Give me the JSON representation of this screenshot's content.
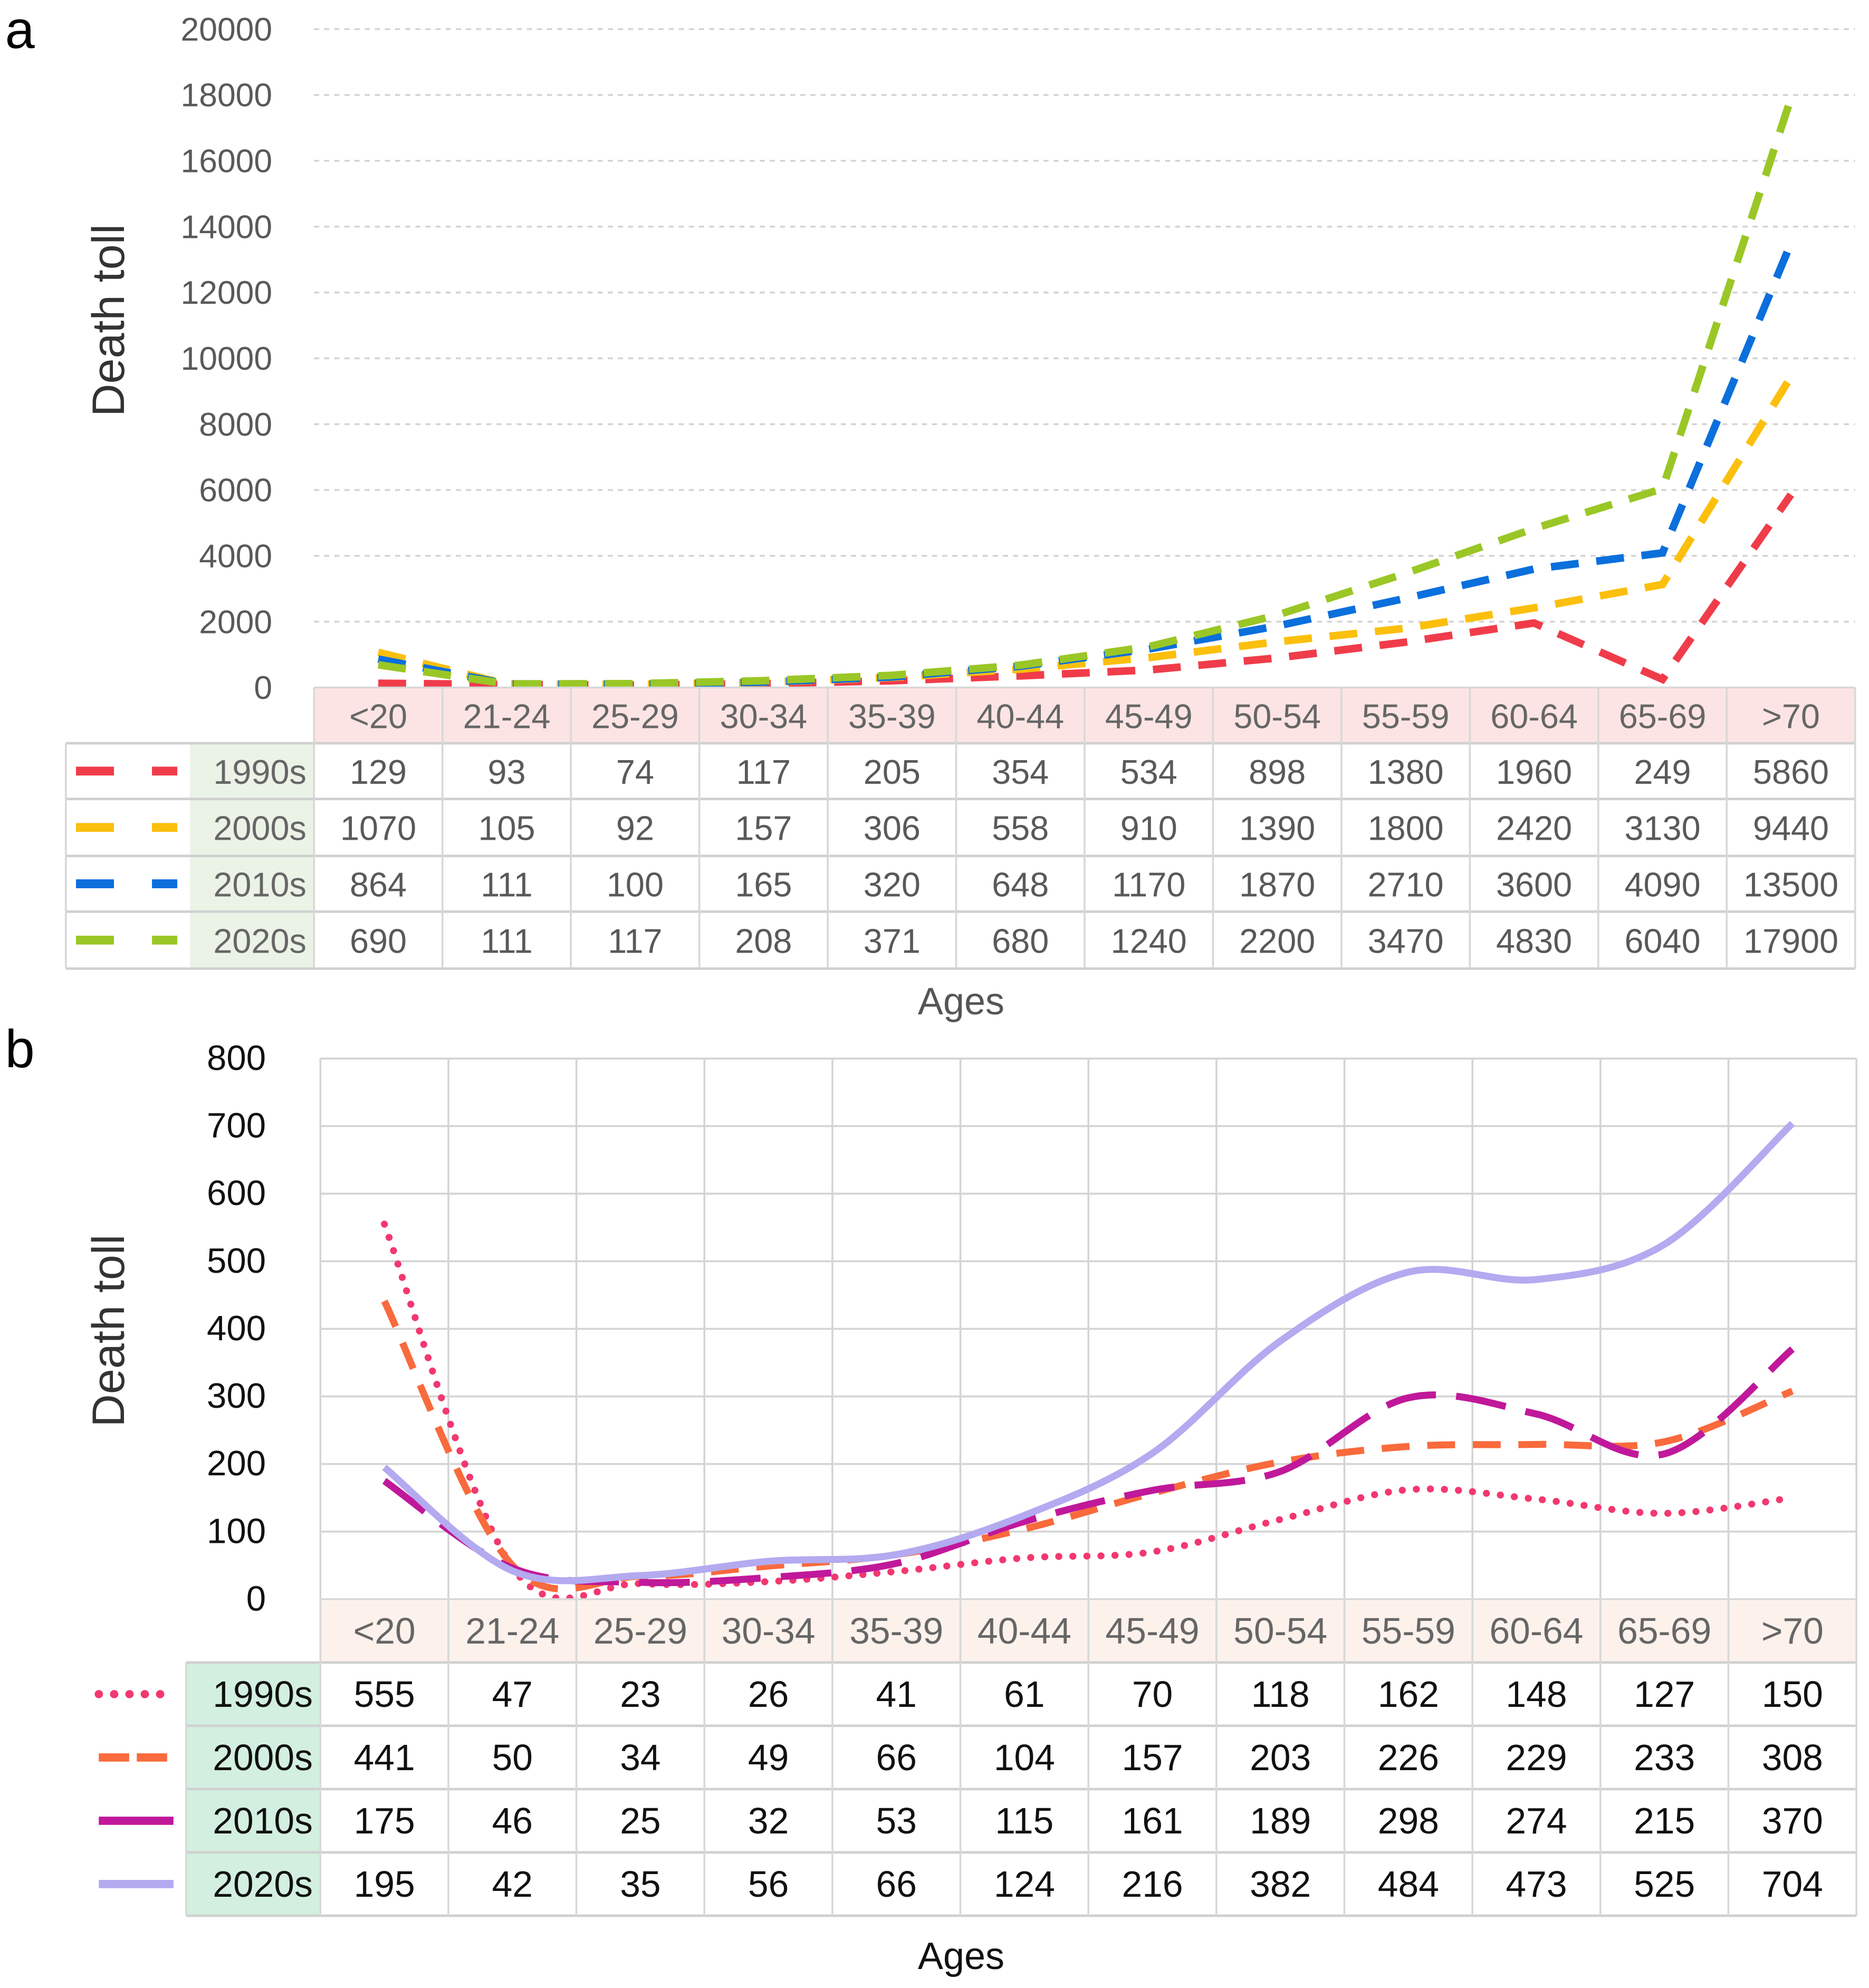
{
  "chart_data": [
    {
      "panel": "a",
      "type": "line",
      "ylabel": "Death toll",
      "xlabel": "Ages",
      "ylim": [
        0,
        20000
      ],
      "yticks": [
        0,
        2000,
        4000,
        6000,
        8000,
        10000,
        12000,
        14000,
        16000,
        18000,
        20000
      ],
      "grid": "horizontal dashed",
      "legend": "table-left",
      "categories": [
        "<20",
        "21-24",
        "25-29",
        "30-34",
        "35-39",
        "40-44",
        "45-49",
        "50-54",
        "55-59",
        "60-64",
        "65-69",
        ">70"
      ],
      "series": [
        {
          "name": "1990s",
          "color": "#f03c4a",
          "style": "dashed",
          "values": [
            129,
            93,
            74,
            117,
            205,
            354,
            534,
            898,
            1380,
            1960,
            249,
            5860
          ]
        },
        {
          "name": "2000s",
          "color": "#fbbf0c",
          "style": "dashed",
          "values": [
            1070,
            105,
            92,
            157,
            306,
            558,
            910,
            1390,
            1800,
            2420,
            3130,
            9440
          ]
        },
        {
          "name": "2010s",
          "color": "#0b6fdc",
          "style": "dashed",
          "values": [
            864,
            111,
            100,
            165,
            320,
            648,
            1170,
            1870,
            2710,
            3600,
            4090,
            13500
          ]
        },
        {
          "name": "2020s",
          "color": "#9ac726",
          "style": "dashed",
          "values": [
            690,
            111,
            117,
            208,
            371,
            680,
            1240,
            2200,
            3470,
            4830,
            6040,
            17900
          ]
        }
      ]
    },
    {
      "panel": "b",
      "type": "line",
      "ylabel": "Death toll",
      "xlabel": "Ages",
      "ylim": [
        0,
        800
      ],
      "yticks": [
        0,
        100,
        200,
        300,
        400,
        500,
        600,
        700,
        800
      ],
      "grid": "both solid",
      "legend": "table-left",
      "categories": [
        "<20",
        "21-24",
        "25-29",
        "30-34",
        "35-39",
        "40-44",
        "45-49",
        "50-54",
        "55-59",
        "60-64",
        "65-69",
        ">70"
      ],
      "series": [
        {
          "name": "1990s",
          "color": "#f2386f",
          "style": "dotted",
          "values": [
            555,
            47,
            23,
            26,
            41,
            61,
            70,
            118,
            162,
            148,
            127,
            150
          ]
        },
        {
          "name": "2000s",
          "color": "#f96a3c",
          "style": "dashed",
          "values": [
            441,
            50,
            34,
            49,
            66,
            104,
            157,
            203,
            226,
            229,
            233,
            308
          ]
        },
        {
          "name": "2010s",
          "color": "#c0189a",
          "style": "longdash",
          "values": [
            175,
            46,
            25,
            32,
            53,
            115,
            161,
            189,
            298,
            274,
            215,
            370
          ]
        },
        {
          "name": "2020s",
          "color": "#b3aaf0",
          "style": "solid",
          "values": [
            195,
            42,
            35,
            56,
            66,
            124,
            216,
            382,
            484,
            473,
            525,
            704
          ]
        }
      ]
    }
  ]
}
